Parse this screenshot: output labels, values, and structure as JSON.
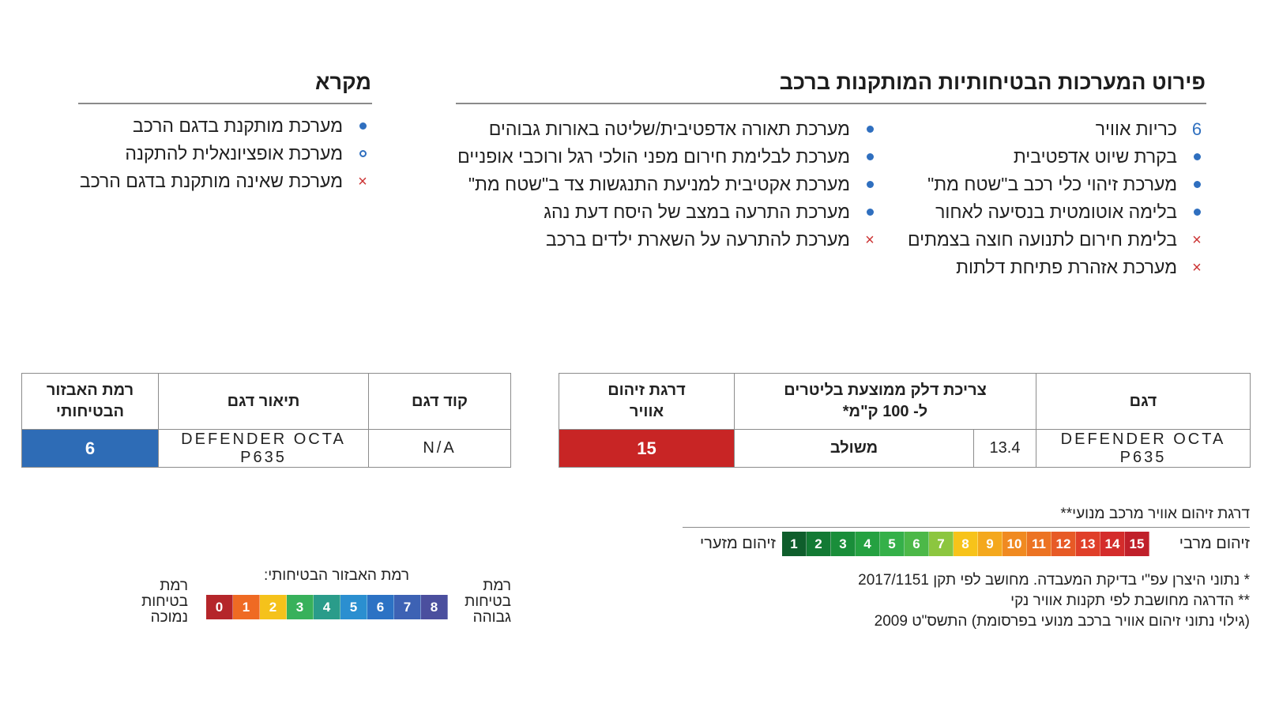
{
  "systems": {
    "title": "פירוט המערכות הבטיחותיות המותקנות ברכב",
    "right_column": [
      {
        "marker": "number",
        "marker_text": "6",
        "label": "כריות אוויר"
      },
      {
        "marker": "installed",
        "marker_text": "",
        "label": "בקרת שיוט אדפטיבית"
      },
      {
        "marker": "installed",
        "marker_text": "",
        "label": "מערכת זיהוי כלי רכב ב\"שטח מת\""
      },
      {
        "marker": "installed",
        "marker_text": "",
        "label": "בלימה אוטומטית בנסיעה לאחור"
      },
      {
        "marker": "not_installed",
        "marker_text": "×",
        "label": "בלימת חירום לתנועה חוצה בצמתים"
      },
      {
        "marker": "not_installed",
        "marker_text": "×",
        "label": "מערכת אזהרת פתיחת דלתות"
      }
    ],
    "left_column": [
      {
        "marker": "installed",
        "marker_text": "",
        "label": "מערכת תאורה אדפטיבית/שליטה באורות גבוהים"
      },
      {
        "marker": "installed",
        "marker_text": "",
        "label": "מערכת לבלימת חירום מפני הולכי רגל ורוכבי אופניים"
      },
      {
        "marker": "installed",
        "marker_text": "",
        "label": "מערכת אקטיבית למניעת התנגשות צד ב\"שטח מת\""
      },
      {
        "marker": "installed",
        "marker_text": "",
        "label": "מערכת התרעה במצב של היסח דעת נהג"
      },
      {
        "marker": "not_installed",
        "marker_text": "×",
        "label": "מערכת להתרעה על השארת ילדים ברכב"
      }
    ]
  },
  "legend": {
    "title": "מקרא",
    "items": [
      {
        "marker": "installed",
        "marker_text": "",
        "label": "מערכת מותקנת בדגם הרכב"
      },
      {
        "marker": "optional",
        "marker_text": "",
        "label": "מערכת אופציונאלית להתקנה"
      },
      {
        "marker": "not_installed",
        "marker_text": "×",
        "label": "מערכת שאינה מותקנת בדגם הרכב"
      }
    ]
  },
  "fuel_table": {
    "headers": {
      "model": "דגם",
      "consumption": "צריכת דלק ממוצעת בליטרים",
      "consumption_sub": "ל- 100 ק\"מ*",
      "pollution": "דרגת זיהום",
      "pollution_sub": "אוויר"
    },
    "row": {
      "model_line1": "DEFENDER OCTA",
      "model_line2": "P635",
      "consumption_value": "13.4",
      "consumption_type": "משולב",
      "pollution_level": "15"
    },
    "colors": {
      "pollution_cell": "#c82525"
    }
  },
  "safety_table": {
    "headers": {
      "code": "קוד דגם",
      "description": "תיאור דגם",
      "level": "רמת האבזור",
      "level_sub": "הבטיחותי"
    },
    "row": {
      "code": "N/A",
      "description_line1": "DEFENDER OCTA",
      "description_line2": "P635",
      "level": "6"
    },
    "colors": {
      "level_cell": "#2e6cb6"
    }
  },
  "pollution_scale": {
    "title": "דרגת זיהום אוויר מרכב מנועי**",
    "label_min": "זיהום מזערי",
    "label_max": "זיהום מרבי",
    "steps": [
      {
        "value": "1",
        "color": "#0f5e2c"
      },
      {
        "value": "2",
        "color": "#137a34"
      },
      {
        "value": "3",
        "color": "#1a8e3a"
      },
      {
        "value": "4",
        "color": "#25a141"
      },
      {
        "value": "5",
        "color": "#35b049"
      },
      {
        "value": "6",
        "color": "#4cb848"
      },
      {
        "value": "7",
        "color": "#8cc63f"
      },
      {
        "value": "8",
        "color": "#f7c31a"
      },
      {
        "value": "9",
        "color": "#f4a81d"
      },
      {
        "value": "10",
        "color": "#f08a21"
      },
      {
        "value": "11",
        "color": "#ec7323"
      },
      {
        "value": "12",
        "color": "#e75a26"
      },
      {
        "value": "13",
        "color": "#e03f29"
      },
      {
        "value": "14",
        "color": "#d42c2b"
      },
      {
        "value": "15",
        "color": "#c0202a"
      }
    ]
  },
  "footnotes": {
    "line1": "* נתוני היצרן עפ\"י בדיקת המעבדה. מחושב לפי תקן 2017/1151",
    "line2": "** הדרגה מחושבת לפי תקנות אוויר נקי",
    "line3": "(גילוי נתוני זיהום אוויר ברכב מנועי בפרסומת) התשס\"ט 2009"
  },
  "safety_scale": {
    "title": "רמת האבזור הבטיחותי:",
    "label_high_1": "רמת",
    "label_high_2": "בטיחות",
    "label_high_3": "גבוהה",
    "label_low_1": "רמת",
    "label_low_2": "בטיחות",
    "label_low_3": "נמוכה",
    "steps": [
      {
        "value": "0",
        "color": "#b5262a"
      },
      {
        "value": "1",
        "color": "#ef6a23"
      },
      {
        "value": "2",
        "color": "#f5c21b"
      },
      {
        "value": "3",
        "color": "#38b15b"
      },
      {
        "value": "4",
        "color": "#2a9c8a"
      },
      {
        "value": "5",
        "color": "#2b8fd0"
      },
      {
        "value": "6",
        "color": "#2c72c4"
      },
      {
        "value": "7",
        "color": "#3d62b4"
      },
      {
        "value": "8",
        "color": "#4b4f9e"
      }
    ]
  }
}
